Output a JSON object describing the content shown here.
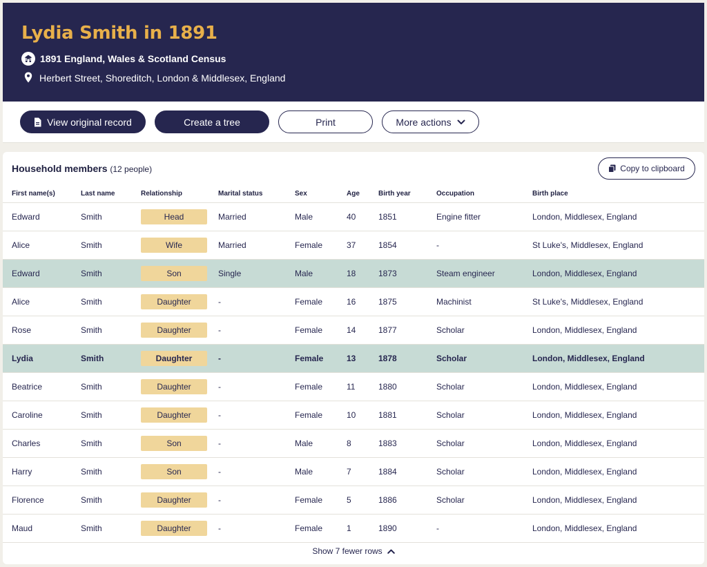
{
  "header": {
    "title": "Lydia Smith in 1891",
    "census": "1891 England, Wales & Scotland Census",
    "place": "Herbert Street, Shoreditch, London & Middlesex, England"
  },
  "actions": {
    "view_original": "View original record",
    "create_tree": "Create a tree",
    "print": "Print",
    "more_actions": "More actions"
  },
  "household": {
    "title": "Household members",
    "count": "(12 people)",
    "copy": "Copy to clipboard",
    "columns": [
      "First name(s)",
      "Last name",
      "Relationship",
      "Marital status",
      "Sex",
      "Age",
      "Birth year",
      "Occupation",
      "Birth place"
    ],
    "rows": [
      {
        "first": "Edward",
        "last": "Smith",
        "rel": "Head",
        "marital": "Married",
        "sex": "Male",
        "age": "40",
        "birth_year": "1851",
        "occupation": "Engine fitter",
        "birth_place": "London, Middlesex, England"
      },
      {
        "first": "Alice",
        "last": "Smith",
        "rel": "Wife",
        "marital": "Married",
        "sex": "Female",
        "age": "37",
        "birth_year": "1854",
        "occupation": "-",
        "birth_place": "St Luke's, Middlesex, England"
      },
      {
        "first": "Edward",
        "last": "Smith",
        "rel": "Son",
        "marital": "Single",
        "sex": "Male",
        "age": "18",
        "birth_year": "1873",
        "occupation": "Steam engineer",
        "birth_place": "London, Middlesex, England"
      },
      {
        "first": "Alice",
        "last": "Smith",
        "rel": "Daughter",
        "marital": "-",
        "sex": "Female",
        "age": "16",
        "birth_year": "1875",
        "occupation": "Machinist",
        "birth_place": "St Luke's, Middlesex, England"
      },
      {
        "first": "Rose",
        "last": "Smith",
        "rel": "Daughter",
        "marital": "-",
        "sex": "Female",
        "age": "14",
        "birth_year": "1877",
        "occupation": "Scholar",
        "birth_place": "London, Middlesex, England"
      },
      {
        "first": "Lydia",
        "last": "Smith",
        "rel": "Daughter",
        "marital": "-",
        "sex": "Female",
        "age": "13",
        "birth_year": "1878",
        "occupation": "Scholar",
        "birth_place": "London, Middlesex, England"
      },
      {
        "first": "Beatrice",
        "last": "Smith",
        "rel": "Daughter",
        "marital": "-",
        "sex": "Female",
        "age": "11",
        "birth_year": "1880",
        "occupation": "Scholar",
        "birth_place": "London, Middlesex, England"
      },
      {
        "first": "Caroline",
        "last": "Smith",
        "rel": "Daughter",
        "marital": "-",
        "sex": "Female",
        "age": "10",
        "birth_year": "1881",
        "occupation": "Scholar",
        "birth_place": "London, Middlesex, England"
      },
      {
        "first": "Charles",
        "last": "Smith",
        "rel": "Son",
        "marital": "-",
        "sex": "Male",
        "age": "8",
        "birth_year": "1883",
        "occupation": "Scholar",
        "birth_place": "London, Middlesex, England"
      },
      {
        "first": "Harry",
        "last": "Smith",
        "rel": "Son",
        "marital": "-",
        "sex": "Male",
        "age": "7",
        "birth_year": "1884",
        "occupation": "Scholar",
        "birth_place": "London, Middlesex, England"
      },
      {
        "first": "Florence",
        "last": "Smith",
        "rel": "Daughter",
        "marital": "-",
        "sex": "Female",
        "age": "5",
        "birth_year": "1886",
        "occupation": "Scholar",
        "birth_place": "London, Middlesex, England"
      },
      {
        "first": "Maud",
        "last": "Smith",
        "rel": "Daughter",
        "marital": "-",
        "sex": "Female",
        "age": "1",
        "birth_year": "1890",
        "occupation": "-",
        "birth_place": "London, Middlesex, England"
      }
    ],
    "footer": "Show 7 fewer rows"
  },
  "icons": {
    "census": "census-house-icon",
    "location": "location-pin-icon",
    "document": "document-icon",
    "chevron_down": "chevron-down-icon",
    "copy": "copy-icon",
    "chevron_up": "chevron-up-icon"
  },
  "colors": {
    "header_bg": "#26264f",
    "title": "#e8b04a",
    "highlight_row": "#c7dbd5",
    "relationship_badge": "#f0d69b"
  }
}
